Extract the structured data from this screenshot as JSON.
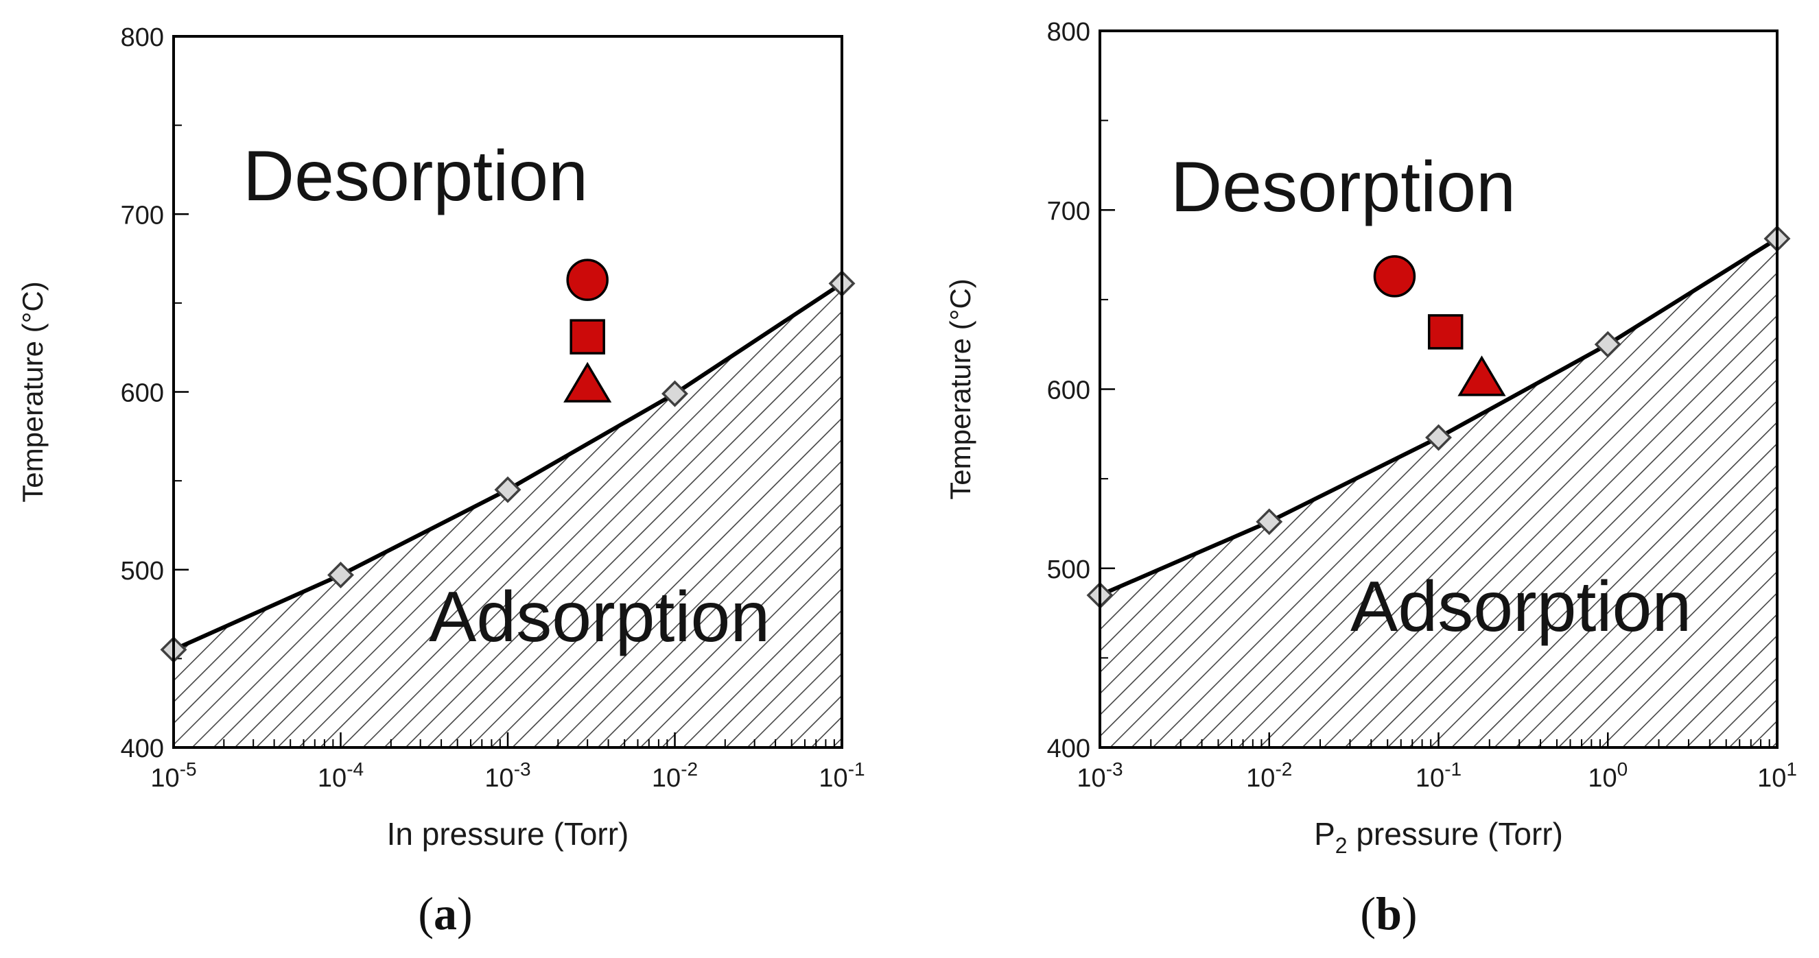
{
  "colors": {
    "marker_fill": "#cc0a0a",
    "marker_stroke": "#000000",
    "diamond_fill": "#d9d9d9",
    "diamond_stroke": "#404040",
    "hatch": "#444444",
    "line": "#000000",
    "frame": "#000000"
  },
  "chart_data": [
    {
      "type": "line",
      "panel": "a",
      "caption_letter": "a",
      "xscale": "log",
      "xlabel_main": "In pressure (Torr)",
      "xlabel_sub": "",
      "ylabel": "Temperature (°C)",
      "xlim_exp": [
        -5,
        -1
      ],
      "ylim": [
        400,
        800
      ],
      "yticks": [
        400,
        500,
        600,
        700,
        800
      ],
      "xticks": [
        {
          "exp": -5,
          "base": "10",
          "sup": "-5"
        },
        {
          "exp": -4,
          "base": "10",
          "sup": "-4"
        },
        {
          "exp": -3,
          "base": "10",
          "sup": "-3"
        },
        {
          "exp": -2,
          "base": "10",
          "sup": "-2"
        },
        {
          "exp": -1,
          "base": "10",
          "sup": "-1"
        }
      ],
      "boundary_series": {
        "name": "desorption/adsorption boundary",
        "x": [
          1e-05,
          0.0001,
          0.001,
          0.01,
          0.1
        ],
        "y": [
          455,
          497,
          545,
          599,
          661
        ]
      },
      "regions": {
        "upper": "Desorption",
        "lower": "Adsorption"
      },
      "growth_points": [
        {
          "shape": "circle",
          "x": 0.003,
          "y": 663
        },
        {
          "shape": "square",
          "x": 0.003,
          "y": 631
        },
        {
          "shape": "triangle",
          "x": 0.003,
          "y": 604
        }
      ]
    },
    {
      "type": "line",
      "panel": "b",
      "caption_letter": "b",
      "xscale": "log",
      "xlabel_main": "P",
      "xlabel_sub": "2",
      "xlabel_rest": " pressure (Torr)",
      "ylabel": "Temperature (°C)",
      "xlim_exp": [
        -3,
        1
      ],
      "ylim": [
        400,
        800
      ],
      "yticks": [
        400,
        500,
        600,
        700,
        800
      ],
      "xticks": [
        {
          "exp": -3,
          "base": "10",
          "sup": "-3"
        },
        {
          "exp": -2,
          "base": "10",
          "sup": "-2"
        },
        {
          "exp": -1,
          "base": "10",
          "sup": "-1"
        },
        {
          "exp": 0,
          "base": "10",
          "sup": "0"
        },
        {
          "exp": 1,
          "base": "10",
          "sup": "1"
        }
      ],
      "boundary_series": {
        "name": "desorption/adsorption boundary",
        "x": [
          0.001,
          0.01,
          0.1,
          1,
          10
        ],
        "y": [
          485,
          526,
          573,
          625,
          684
        ]
      },
      "regions": {
        "upper": "Desorption",
        "lower": "Adsorption"
      },
      "growth_points": [
        {
          "shape": "circle",
          "x": 0.055,
          "y": 663
        },
        {
          "shape": "square",
          "x": 0.11,
          "y": 632
        },
        {
          "shape": "triangle",
          "x": 0.18,
          "y": 606
        }
      ]
    }
  ]
}
